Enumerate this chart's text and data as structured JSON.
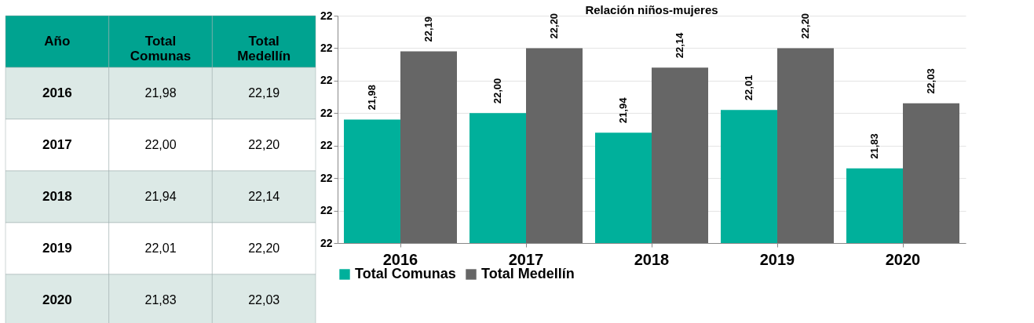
{
  "chart_data": {
    "type": "bar",
    "title": "Relación niños-mujeres",
    "annotations": [
      "Año"
    ],
    "categories": [
      "2016",
      "2017",
      "2018",
      "2019",
      "2020"
    ],
    "series": [
      {
        "name": "Total Comunas",
        "color": "#00b09b",
        "values": [
          21.98,
          22.0,
          21.94,
          22.01,
          21.83
        ],
        "value_labels": [
          "21,98",
          "22,00",
          "21,94",
          "22,01",
          "21,83"
        ]
      },
      {
        "name": "Total Medellín",
        "color": "#666666",
        "values": [
          22.19,
          22.2,
          22.14,
          22.2,
          22.03
        ],
        "value_labels": [
          "22,19",
          "22,20",
          "22,14",
          "22,20",
          "22,03"
        ]
      }
    ],
    "ylim": [
      21.6,
      22.3
    ],
    "yticks": [
      {
        "value": 21.6,
        "label": "22"
      },
      {
        "value": 21.7,
        "label": "22"
      },
      {
        "value": 21.8,
        "label": "22"
      },
      {
        "value": 21.9,
        "label": "22"
      },
      {
        "value": 22.0,
        "label": "22"
      },
      {
        "value": 22.1,
        "label": "22"
      },
      {
        "value": 22.2,
        "label": "22"
      },
      {
        "value": 22.3,
        "label": "22"
      }
    ],
    "grid": "y",
    "legend": "bottom"
  }
}
